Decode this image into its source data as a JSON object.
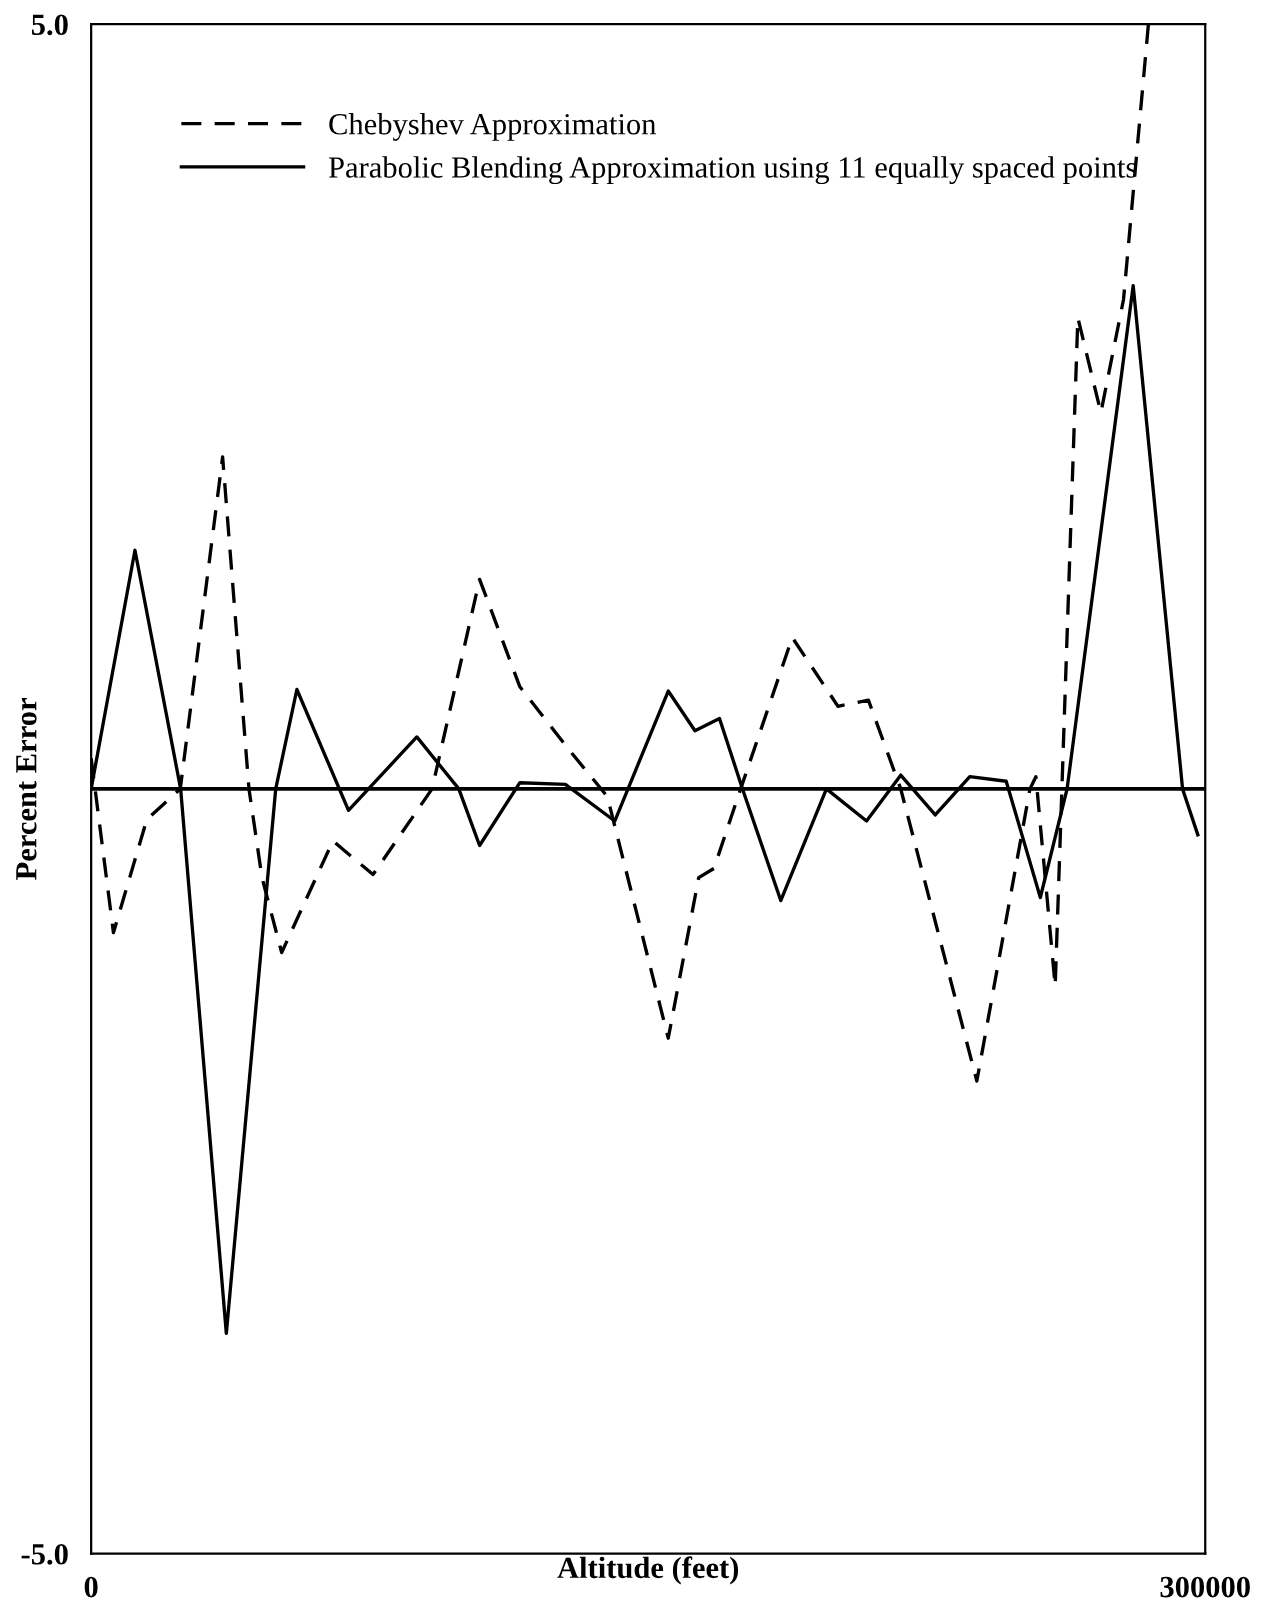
{
  "chart_data": {
    "type": "line",
    "xlabel": "Altitude (feet)",
    "ylabel": "Percent Error",
    "xlim": [
      0,
      300000
    ],
    "ylim": [
      -5,
      5
    ],
    "xticks": [
      0,
      300000
    ],
    "yticks": [
      {
        "value": 5,
        "label": "5.0"
      },
      {
        "value": -5,
        "label": "-5.0"
      }
    ],
    "grid": false,
    "legend": "top left",
    "marker": "none",
    "ref_lines": [
      {
        "axis": "y",
        "value": 0,
        "label": null,
        "color": "#000000",
        "line_style": "solid"
      }
    ],
    "series": [
      {
        "name": "Chebyshev Approximation",
        "color": "#000000",
        "line_style": "dashed",
        "x": [
          0,
          6000,
          15000,
          19500,
          24000,
          35400,
          42500,
          46000,
          51300,
          65100,
          75900,
          91800,
          104600,
          115400,
          128200,
          139000,
          155400,
          163600,
          167700,
          174900,
          188800,
          201100,
          209300,
          218000,
          238500,
          252800,
          254400,
          259600,
          265700,
          271900,
          278000,
          284700
        ],
        "values": [
          0.2,
          -0.94,
          -0.2,
          -0.1,
          0,
          2.17,
          0,
          -0.58,
          -1.07,
          -0.34,
          -0.56,
          0,
          1.37,
          0.67,
          0.27,
          -0.05,
          -1.63,
          -0.58,
          -0.52,
          0,
          0.99,
          0.54,
          0.58,
          0,
          -1.91,
          0,
          0.08,
          -1.29,
          3.08,
          2.46,
          3.2,
          5.0
        ]
      },
      {
        "name": "Parabolic Blending Approximation using 11 equally spaced points",
        "color": "#000000",
        "line_style": "solid",
        "x": [
          0,
          11800,
          24100,
          36400,
          49700,
          55400,
          69300,
          87700,
          99000,
          104600,
          115400,
          127700,
          141000,
          155400,
          162600,
          169200,
          175400,
          185700,
          198000,
          208800,
          218000,
          227300,
          236600,
          246400,
          255600,
          262800,
          280600,
          293900,
          298000
        ],
        "values": [
          0,
          1.56,
          0,
          -3.56,
          0,
          0.65,
          -0.14,
          0.34,
          0,
          -0.37,
          0.04,
          0.03,
          -0.21,
          0.64,
          0.38,
          0.46,
          0,
          -0.73,
          0,
          -0.21,
          0.09,
          -0.17,
          0.08,
          0.05,
          -0.71,
          0,
          3.29,
          0,
          -0.3
        ]
      }
    ]
  }
}
